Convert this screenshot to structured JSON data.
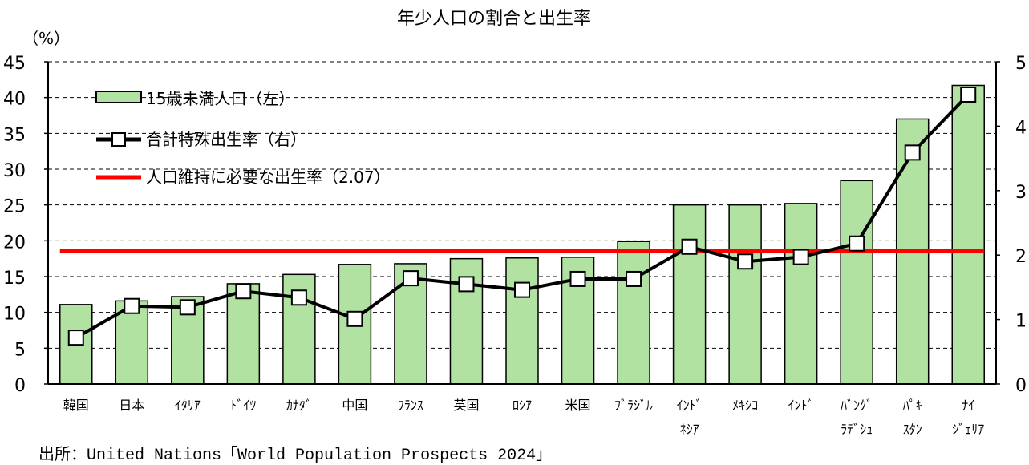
{
  "chart_data": {
    "type": "bar+line",
    "title": "年少人口の割合と出生率",
    "ylabel": "（%）",
    "ylim": [
      0,
      45
    ],
    "y2lim": [
      0,
      5
    ],
    "yticks": [
      0,
      5,
      10,
      15,
      20,
      25,
      30,
      35,
      40,
      45
    ],
    "y2ticks": [
      0,
      1,
      2,
      3,
      4,
      5
    ],
    "grid": "horizontal dashed",
    "legend_position": "top-left",
    "categories": [
      [
        "韓国"
      ],
      [
        "日本"
      ],
      [
        "ｲﾀﾘｱ"
      ],
      [
        "ﾄﾞｲﾂ"
      ],
      [
        "ｶﾅﾀﾞ"
      ],
      [
        "中国"
      ],
      [
        "ﾌﾗﾝｽ"
      ],
      [
        "英国"
      ],
      [
        "ﾛｼｱ"
      ],
      [
        "米国"
      ],
      [
        "ﾌﾞﾗｼﾞﾙ"
      ],
      [
        "ｲﾝﾄﾞ",
        "ﾈｼｱ"
      ],
      [
        "ﾒｷｼｺ"
      ],
      [
        "ｲﾝﾄﾞ"
      ],
      [
        "ﾊﾞﾝｸﾞ",
        "ﾗﾃﾞｼｭ"
      ],
      [
        "ﾊﾟｷ",
        "ｽﾀﾝ"
      ],
      [
        "ﾅｲ",
        "ｼﾞｪﾘｱ"
      ]
    ],
    "series": [
      {
        "name": "15歳未満人口（左）",
        "type": "bar",
        "axis": "left",
        "color": "#b2e2a2",
        "values": [
          11.1,
          11.6,
          12.2,
          14.0,
          15.3,
          16.7,
          16.8,
          17.5,
          17.6,
          17.7,
          19.9,
          25.0,
          25.0,
          25.2,
          28.4,
          37.0,
          41.7
        ]
      },
      {
        "name": "合計特殊出生率（右）",
        "type": "line",
        "axis": "right",
        "color": "#000000",
        "values": [
          0.72,
          1.21,
          1.19,
          1.44,
          1.34,
          1.01,
          1.64,
          1.55,
          1.46,
          1.63,
          1.63,
          2.13,
          1.9,
          1.97,
          2.18,
          3.59,
          4.49
        ]
      },
      {
        "name": "人口維持に必要な出生率（2.07）",
        "type": "hline",
        "axis": "right",
        "color": "#ff0000",
        "value": 2.07
      }
    ]
  },
  "source": "出所：United Nations「World Population Prospects 2024」"
}
